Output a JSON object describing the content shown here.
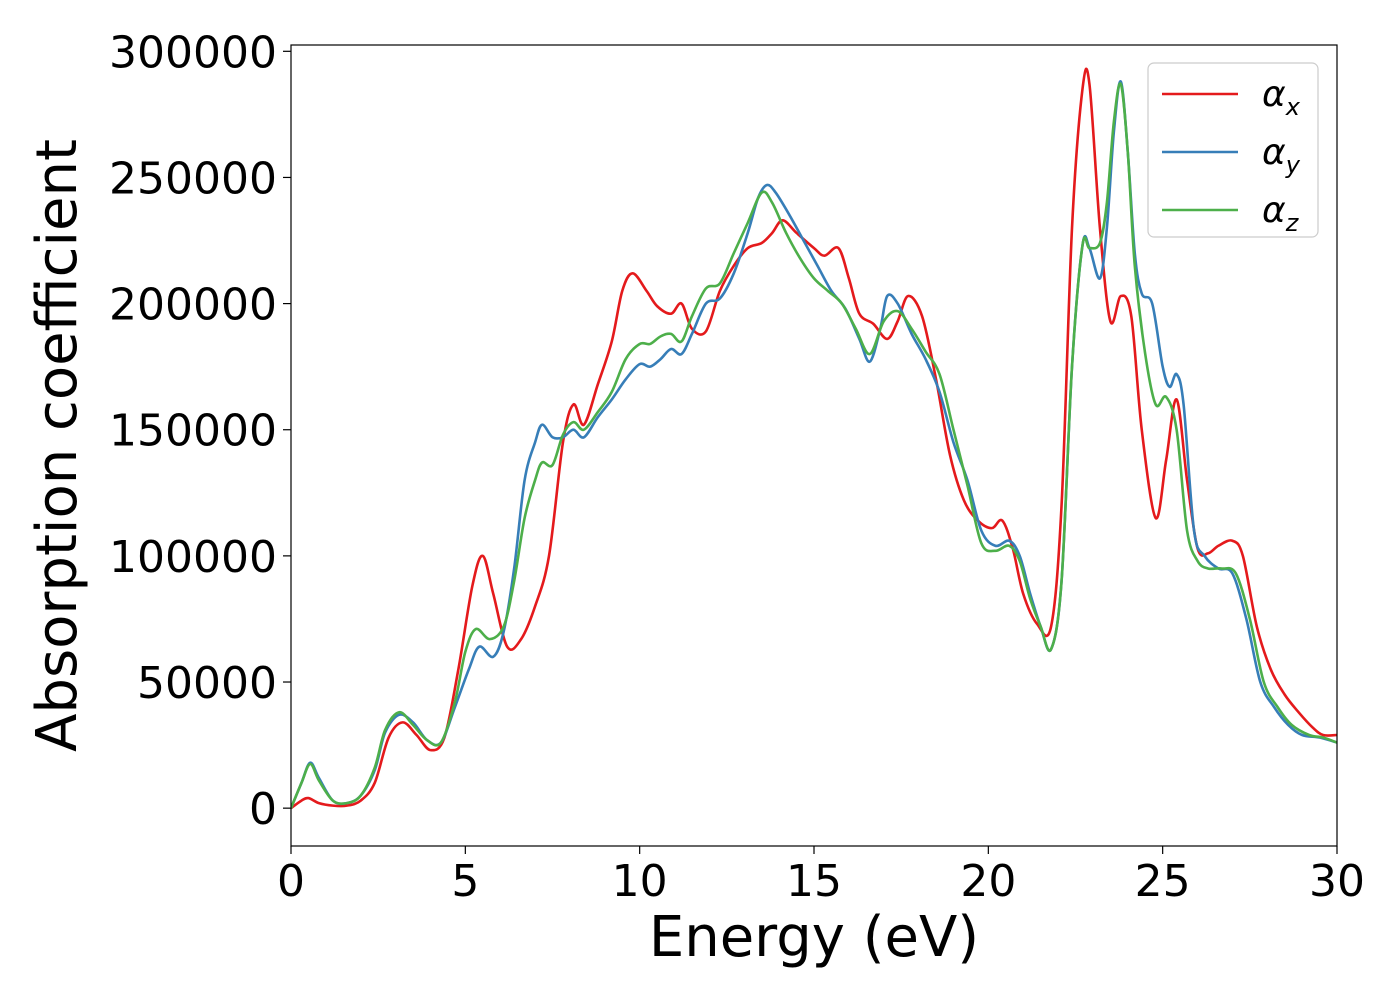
{
  "chart_data": {
    "type": "line",
    "title": "",
    "xlabel": "Energy (eV)",
    "ylabel": "Absorption coefficient",
    "xlim": [
      0,
      30
    ],
    "ylim": [
      -15000,
      302500
    ],
    "xticks": [
      0,
      5,
      10,
      15,
      20,
      25,
      30
    ],
    "yticks": [
      0,
      50000,
      100000,
      150000,
      200000,
      250000,
      300000
    ],
    "xtick_labels": [
      "0",
      "5",
      "10",
      "15",
      "20",
      "25",
      "30"
    ],
    "ytick_labels": [
      "0",
      "50000",
      "100000",
      "150000",
      "200000",
      "250000",
      "300000"
    ],
    "grid": false,
    "legend_position": "top-right",
    "series": [
      {
        "name": "α_x",
        "legend_main": "α",
        "legend_sub": "x",
        "color": "#e41a1c",
        "x": [
          0,
          0.3,
          0.5,
          0.8,
          1.2,
          1.6,
          2.0,
          2.4,
          2.8,
          3.2,
          3.6,
          4.0,
          4.4,
          4.8,
          5.2,
          5.5,
          5.8,
          6.2,
          6.6,
          7.0,
          7.4,
          7.8,
          8.1,
          8.4,
          8.8,
          9.2,
          9.5,
          9.8,
          10.2,
          10.5,
          10.9,
          11.2,
          11.5,
          11.9,
          12.3,
          12.7,
          13.1,
          13.5,
          13.8,
          14.1,
          14.5,
          15.0,
          15.3,
          15.7,
          16.0,
          16.3,
          16.7,
          17.1,
          17.4,
          17.7,
          18.1,
          18.5,
          18.9,
          19.3,
          19.7,
          20.1,
          20.4,
          20.7,
          21.0,
          21.4,
          21.8,
          22.1,
          22.4,
          22.7,
          22.9,
          23.2,
          23.5,
          23.8,
          24.1,
          24.4,
          24.8,
          25.1,
          25.4,
          25.7,
          26.0,
          26.3,
          26.6,
          27.0,
          27.3,
          27.7,
          28.1,
          28.5,
          28.9,
          29.3,
          29.6,
          30.0
        ],
        "y": [
          0,
          3000,
          4000,
          2000,
          1000,
          1000,
          3000,
          10000,
          28000,
          34000,
          29000,
          23000,
          28000,
          55000,
          88000,
          100000,
          85000,
          64000,
          67000,
          80000,
          100000,
          145000,
          160000,
          152000,
          168000,
          185000,
          205000,
          212000,
          205000,
          199000,
          196000,
          200000,
          190000,
          189000,
          205000,
          215000,
          222000,
          224000,
          228000,
          233000,
          228000,
          222000,
          219000,
          222000,
          210000,
          196000,
          192000,
          186000,
          193000,
          203000,
          195000,
          170000,
          140000,
          122000,
          114000,
          111000,
          114000,
          103000,
          85000,
          73000,
          72000,
          120000,
          230000,
          285000,
          287000,
          230000,
          193000,
          203000,
          195000,
          150000,
          115000,
          138000,
          162000,
          130000,
          103000,
          101000,
          104000,
          106000,
          100000,
          72000,
          55000,
          45000,
          38000,
          32000,
          29000,
          29000
        ]
      },
      {
        "name": "α_y",
        "legend_main": "α",
        "legend_sub": "y",
        "color": "#377eb8",
        "x": [
          0,
          0.3,
          0.55,
          0.8,
          1.2,
          1.6,
          2.0,
          2.4,
          2.7,
          3.1,
          3.5,
          3.9,
          4.3,
          4.7,
          5.1,
          5.4,
          5.8,
          6.1,
          6.4,
          6.7,
          7.0,
          7.2,
          7.5,
          7.8,
          8.1,
          8.4,
          8.8,
          9.2,
          9.6,
          10.0,
          10.3,
          10.6,
          10.9,
          11.2,
          11.5,
          11.9,
          12.3,
          12.7,
          13.1,
          13.4,
          13.65,
          13.9,
          14.3,
          14.7,
          15.1,
          15.5,
          15.9,
          16.3,
          16.6,
          16.9,
          17.1,
          17.4,
          17.8,
          18.2,
          18.6,
          19.0,
          19.4,
          19.8,
          20.2,
          20.6,
          20.9,
          21.2,
          21.5,
          21.8,
          22.1,
          22.4,
          22.7,
          22.9,
          23.2,
          23.4,
          23.6,
          23.8,
          24.0,
          24.2,
          24.4,
          24.7,
          25.0,
          25.2,
          25.4,
          25.6,
          25.9,
          26.2,
          26.6,
          27.0,
          27.4,
          27.8,
          28.2,
          28.6,
          29.0,
          29.5,
          30.0
        ],
        "y": [
          0,
          10000,
          18000,
          12000,
          3000,
          2000,
          5000,
          15000,
          30000,
          37000,
          34000,
          27000,
          26000,
          40000,
          55000,
          64000,
          60000,
          70000,
          95000,
          130000,
          145000,
          152000,
          147000,
          147000,
          150000,
          147000,
          155000,
          162000,
          170000,
          176000,
          175000,
          178000,
          182000,
          180000,
          188000,
          200000,
          202000,
          212000,
          228000,
          242000,
          247000,
          244000,
          235000,
          225000,
          215000,
          205000,
          198000,
          186000,
          177000,
          190000,
          203000,
          200000,
          188000,
          178000,
          165000,
          145000,
          130000,
          110000,
          104000,
          106000,
          100000,
          85000,
          72000,
          63000,
          90000,
          175000,
          223000,
          222000,
          210000,
          230000,
          268000,
          288000,
          260000,
          220000,
          204000,
          200000,
          175000,
          167000,
          172000,
          160000,
          110000,
          100000,
          95000,
          93000,
          75000,
          50000,
          40000,
          33000,
          29000,
          28000,
          26000
        ]
      },
      {
        "name": "α_z",
        "legend_main": "α",
        "legend_sub": "z",
        "color": "#4daf4a",
        "x": [
          0,
          0.3,
          0.55,
          0.8,
          1.2,
          1.6,
          2.0,
          2.4,
          2.7,
          3.1,
          3.5,
          3.9,
          4.3,
          4.7,
          5.0,
          5.3,
          5.7,
          6.1,
          6.4,
          6.7,
          7.0,
          7.2,
          7.5,
          7.8,
          8.1,
          8.4,
          8.8,
          9.2,
          9.6,
          10.0,
          10.3,
          10.6,
          10.9,
          11.2,
          11.5,
          11.9,
          12.3,
          12.7,
          13.1,
          13.5,
          13.8,
          14.2,
          14.6,
          15.0,
          15.4,
          15.8,
          16.2,
          16.6,
          17.0,
          17.4,
          17.8,
          18.2,
          18.6,
          19.0,
          19.4,
          19.8,
          20.2,
          20.6,
          20.9,
          21.2,
          21.5,
          21.8,
          22.1,
          22.4,
          22.7,
          22.9,
          23.2,
          23.4,
          23.6,
          23.8,
          24.0,
          24.2,
          24.5,
          24.8,
          25.1,
          25.4,
          25.7,
          26.0,
          26.3,
          26.7,
          27.1,
          27.5,
          27.9,
          28.3,
          28.7,
          29.2,
          29.6,
          30.0
        ],
        "y": [
          0,
          10000,
          17500,
          11000,
          3000,
          2000,
          5000,
          16000,
          31000,
          38000,
          33000,
          27000,
          26000,
          42000,
          62000,
          71000,
          67000,
          72000,
          90000,
          115000,
          130000,
          137000,
          136000,
          148000,
          153000,
          150000,
          157000,
          165000,
          178000,
          184000,
          184000,
          187000,
          188000,
          185000,
          195000,
          206000,
          208000,
          220000,
          232000,
          244000,
          240000,
          228000,
          218000,
          210000,
          205000,
          200000,
          190000,
          180000,
          193000,
          197000,
          190000,
          181000,
          172000,
          150000,
          128000,
          105000,
          102000,
          104000,
          98000,
          83000,
          72000,
          63000,
          90000,
          175000,
          223000,
          222000,
          224000,
          240000,
          272000,
          287000,
          260000,
          215000,
          180000,
          160000,
          163000,
          150000,
          110000,
          98000,
          95000,
          95000,
          93000,
          75000,
          50000,
          40000,
          33000,
          29000,
          28000,
          26000
        ]
      }
    ]
  }
}
